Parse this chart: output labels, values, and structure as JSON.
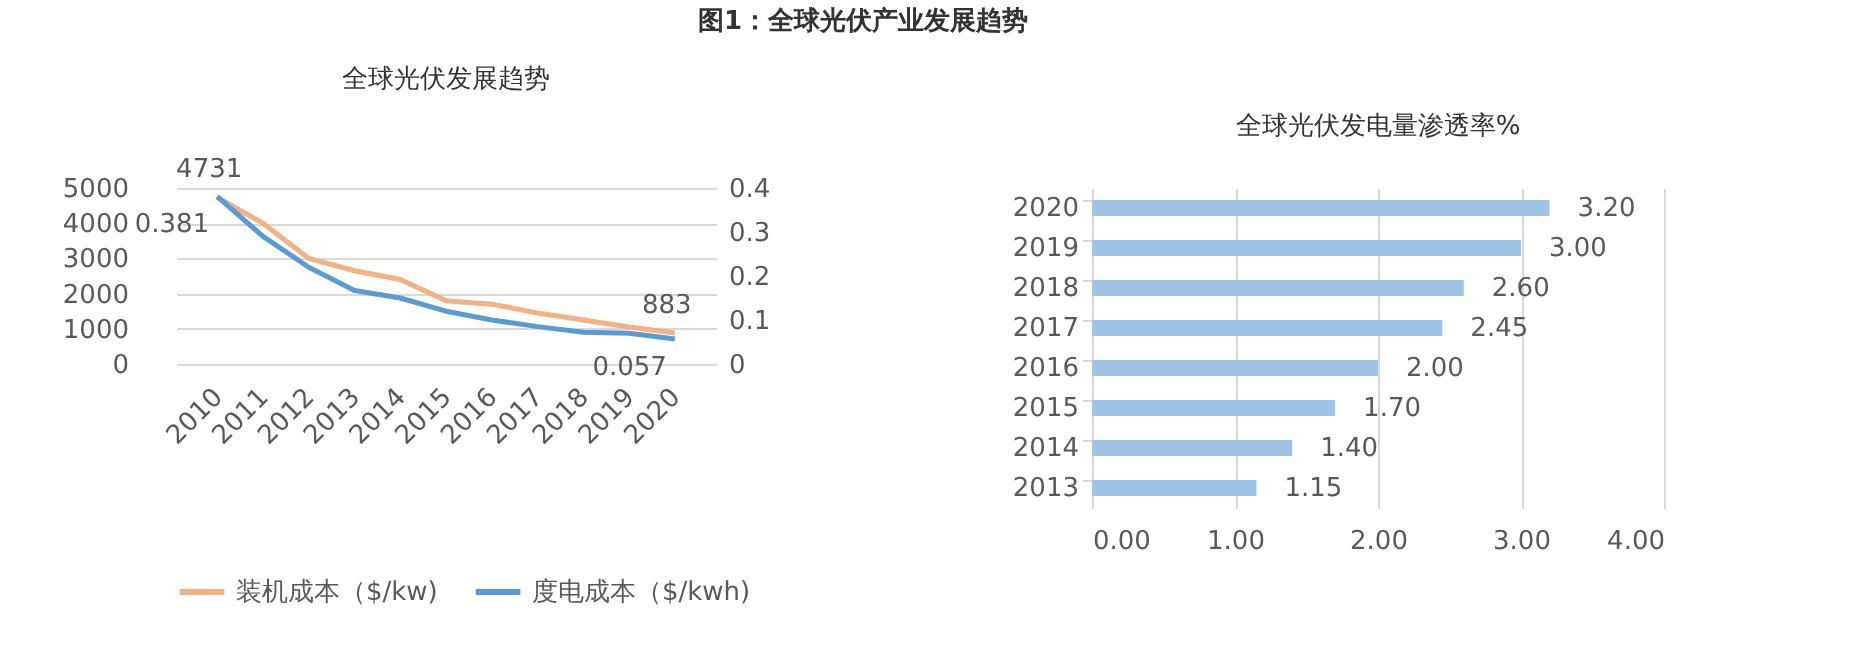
{
  "chart_data": [
    {
      "type": "line",
      "title": "全球光伏发展趋势",
      "annotations": [
        "图1：全球光伏产业发展趋势"
      ],
      "categories": [
        "2010",
        "2011",
        "2012",
        "2013",
        "2014",
        "2015",
        "2016",
        "2017",
        "2018",
        "2019",
        "2020"
      ],
      "series": [
        {
          "name": "装机成本（$/kw)",
          "color": "#f4b183",
          "values": [
            4731,
            4000,
            3000,
            2650,
            2400,
            1800,
            1700,
            1450,
            1250,
            1050,
            883
          ],
          "value_labels": [
            "4731",
            null,
            null,
            null,
            null,
            null,
            null,
            null,
            null,
            null,
            "883"
          ]
        },
        {
          "name": "度电成本（$/kwh)",
          "color": "#5b9bd5",
          "axis": "y2",
          "values": [
            0.381,
            0.29,
            0.22,
            0.167,
            0.15,
            0.12,
            0.1,
            0.085,
            0.072,
            0.07,
            0.057
          ],
          "value_labels": [
            "0.381",
            null,
            null,
            null,
            null,
            null,
            null,
            null,
            null,
            null,
            "0.057"
          ]
        }
      ],
      "ylim": [
        0,
        5000
      ],
      "yticks": [
        0,
        1000,
        2000,
        3000,
        4000,
        5000
      ],
      "y2lim": [
        0,
        0.4
      ],
      "y2ticks": [
        0,
        0.1,
        0.2,
        0.3,
        0.4
      ],
      "grid": "y",
      "legend": "bottom"
    },
    {
      "type": "bar",
      "orientation": "horizontal",
      "title": "全球光伏发电量渗透率%",
      "categories": [
        "2020",
        "2019",
        "2018",
        "2017",
        "2016",
        "2015",
        "2014",
        "2013"
      ],
      "color": "#9dc3e6",
      "values": [
        3.2,
        3.0,
        2.6,
        2.45,
        2.0,
        1.7,
        1.4,
        1.15
      ],
      "value_labels": [
        "3.20",
        "3.00",
        "2.60",
        "2.45",
        "2.00",
        "1.70",
        "1.40",
        "1.15"
      ],
      "xlim": [
        0,
        4
      ],
      "xticks": [
        {
          "value": 0,
          "label": "0.00"
        },
        {
          "value": 1,
          "label": "1.00"
        },
        {
          "value": 2,
          "label": "2.00"
        },
        {
          "value": 3,
          "label": "3.00"
        },
        {
          "value": 4,
          "label": "4.00"
        }
      ],
      "grid": "x"
    }
  ]
}
